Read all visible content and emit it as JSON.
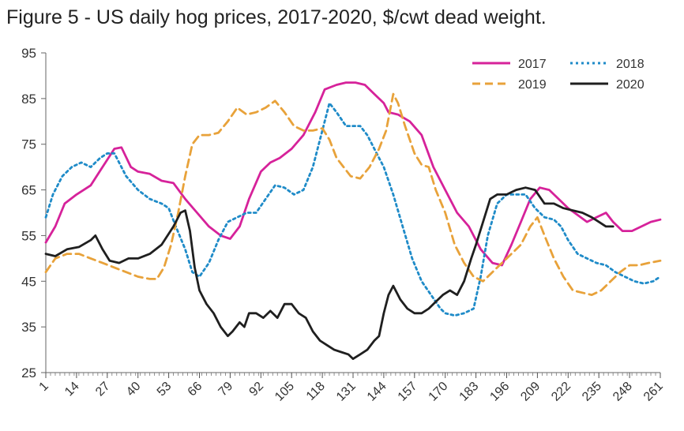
{
  "chart_data": {
    "type": "line",
    "title": "Figure 5 - US daily hog prices, 2017-2020, $/cwt dead weight.",
    "xlabel": "",
    "ylabel": "",
    "xlim": [
      1,
      261
    ],
    "ylim": [
      25,
      95
    ],
    "y_ticks": [
      25,
      35,
      45,
      55,
      65,
      75,
      85,
      95
    ],
    "x_ticks": [
      1,
      14,
      27,
      40,
      53,
      66,
      79,
      92,
      105,
      118,
      131,
      144,
      157,
      170,
      183,
      196,
      209,
      222,
      235,
      248,
      261
    ],
    "grid": false,
    "legend_position": "top-right",
    "series": [
      {
        "name": "2017",
        "color": "#d6229a",
        "style": "solid",
        "points": [
          [
            1,
            53.5
          ],
          [
            5,
            57
          ],
          [
            9,
            62
          ],
          [
            14,
            64
          ],
          [
            20,
            66
          ],
          [
            25,
            70
          ],
          [
            30,
            74
          ],
          [
            33,
            74.3
          ],
          [
            37,
            70
          ],
          [
            40,
            69
          ],
          [
            45,
            68.5
          ],
          [
            50,
            67
          ],
          [
            55,
            66.5
          ],
          [
            60,
            63
          ],
          [
            65,
            60
          ],
          [
            70,
            57
          ],
          [
            75,
            55
          ],
          [
            79,
            54.3
          ],
          [
            83,
            57
          ],
          [
            87,
            63
          ],
          [
            92,
            69
          ],
          [
            96,
            71
          ],
          [
            100,
            72
          ],
          [
            105,
            74
          ],
          [
            110,
            77
          ],
          [
            115,
            82
          ],
          [
            119,
            87
          ],
          [
            124,
            88
          ],
          [
            128,
            88.5
          ],
          [
            132,
            88.5
          ],
          [
            136,
            88
          ],
          [
            140,
            86
          ],
          [
            144,
            84
          ],
          [
            146,
            82
          ],
          [
            150,
            81.5
          ],
          [
            155,
            80
          ],
          [
            160,
            77
          ],
          [
            165,
            70
          ],
          [
            170,
            65
          ],
          [
            175,
            60
          ],
          [
            180,
            57
          ],
          [
            185,
            52
          ],
          [
            190,
            49
          ],
          [
            194,
            48.5
          ],
          [
            198,
            53
          ],
          [
            202,
            58
          ],
          [
            206,
            63
          ],
          [
            210,
            65.5
          ],
          [
            214,
            65
          ],
          [
            218,
            63
          ],
          [
            222,
            61
          ],
          [
            226,
            59.5
          ],
          [
            230,
            58
          ],
          [
            234,
            59
          ],
          [
            238,
            60
          ],
          [
            241,
            58
          ],
          [
            245,
            56
          ],
          [
            249,
            56
          ],
          [
            253,
            57
          ],
          [
            257,
            58
          ],
          [
            261,
            58.5
          ]
        ]
      },
      {
        "name": "2018",
        "color": "#1f8bc8",
        "style": "dotted",
        "points": [
          [
            1,
            59
          ],
          [
            4,
            64
          ],
          [
            8,
            68
          ],
          [
            12,
            70
          ],
          [
            16,
            71
          ],
          [
            20,
            70
          ],
          [
            24,
            72
          ],
          [
            27,
            73
          ],
          [
            30,
            73
          ],
          [
            35,
            68
          ],
          [
            40,
            65
          ],
          [
            45,
            63
          ],
          [
            50,
            62
          ],
          [
            53,
            61
          ],
          [
            56,
            57
          ],
          [
            60,
            52
          ],
          [
            63,
            47
          ],
          [
            66,
            46
          ],
          [
            70,
            49
          ],
          [
            74,
            54
          ],
          [
            78,
            58
          ],
          [
            82,
            59
          ],
          [
            86,
            60
          ],
          [
            90,
            60
          ],
          [
            94,
            63
          ],
          [
            98,
            66
          ],
          [
            102,
            65.5
          ],
          [
            106,
            64
          ],
          [
            110,
            65
          ],
          [
            114,
            70
          ],
          [
            118,
            78
          ],
          [
            121,
            84
          ],
          [
            124,
            82
          ],
          [
            128,
            79
          ],
          [
            131,
            79
          ],
          [
            134,
            79
          ],
          [
            137,
            77
          ],
          [
            140,
            74
          ],
          [
            144,
            70
          ],
          [
            148,
            64
          ],
          [
            152,
            57
          ],
          [
            156,
            50
          ],
          [
            160,
            45
          ],
          [
            164,
            42
          ],
          [
            168,
            39
          ],
          [
            170,
            38
          ],
          [
            174,
            37.5
          ],
          [
            178,
            38
          ],
          [
            182,
            39
          ],
          [
            185,
            46
          ],
          [
            188,
            55
          ],
          [
            192,
            62
          ],
          [
            196,
            64
          ],
          [
            200,
            64
          ],
          [
            204,
            64
          ],
          [
            208,
            61
          ],
          [
            212,
            59
          ],
          [
            216,
            58.5
          ],
          [
            219,
            57
          ],
          [
            222,
            54
          ],
          [
            226,
            51
          ],
          [
            230,
            50
          ],
          [
            234,
            49
          ],
          [
            238,
            48.5
          ],
          [
            242,
            47
          ],
          [
            246,
            46
          ],
          [
            250,
            45
          ],
          [
            254,
            44.5
          ],
          [
            258,
            45
          ],
          [
            261,
            46
          ]
        ]
      },
      {
        "name": "2019",
        "color": "#e8a23a",
        "style": "dashed",
        "points": [
          [
            1,
            47
          ],
          [
            5,
            50
          ],
          [
            10,
            51
          ],
          [
            15,
            51
          ],
          [
            20,
            50
          ],
          [
            25,
            49
          ],
          [
            30,
            48
          ],
          [
            35,
            47
          ],
          [
            40,
            46
          ],
          [
            45,
            45.5
          ],
          [
            48,
            45.5
          ],
          [
            51,
            48
          ],
          [
            54,
            53
          ],
          [
            57,
            60
          ],
          [
            60,
            68
          ],
          [
            63,
            75
          ],
          [
            66,
            77
          ],
          [
            70,
            77
          ],
          [
            74,
            77.5
          ],
          [
            78,
            80
          ],
          [
            82,
            83
          ],
          [
            86,
            81.5
          ],
          [
            90,
            82
          ],
          [
            94,
            83
          ],
          [
            98,
            84.5
          ],
          [
            102,
            82
          ],
          [
            106,
            79
          ],
          [
            110,
            78
          ],
          [
            114,
            78
          ],
          [
            118,
            78.5
          ],
          [
            121,
            76
          ],
          [
            124,
            72
          ],
          [
            127,
            70
          ],
          [
            130,
            68
          ],
          [
            134,
            67.5
          ],
          [
            138,
            70
          ],
          [
            142,
            74
          ],
          [
            145,
            78
          ],
          [
            148,
            86
          ],
          [
            150,
            84
          ],
          [
            153,
            79
          ],
          [
            157,
            73
          ],
          [
            160,
            70.5
          ],
          [
            163,
            70
          ],
          [
            166,
            65
          ],
          [
            170,
            60
          ],
          [
            174,
            53
          ],
          [
            178,
            49
          ],
          [
            182,
            46
          ],
          [
            186,
            45
          ],
          [
            190,
            47
          ],
          [
            194,
            49
          ],
          [
            198,
            51
          ],
          [
            202,
            53
          ],
          [
            206,
            57
          ],
          [
            209,
            59
          ],
          [
            212,
            55
          ],
          [
            216,
            50
          ],
          [
            220,
            46
          ],
          [
            224,
            43
          ],
          [
            228,
            42.5
          ],
          [
            232,
            42
          ],
          [
            236,
            43
          ],
          [
            240,
            45
          ],
          [
            244,
            47
          ],
          [
            248,
            48.5
          ],
          [
            252,
            48.5
          ],
          [
            256,
            49
          ],
          [
            261,
            49.5
          ]
        ]
      },
      {
        "name": "2020",
        "color": "#1f1f1f",
        "style": "solid",
        "points": [
          [
            1,
            51
          ],
          [
            5,
            50.5
          ],
          [
            10,
            52
          ],
          [
            15,
            52.5
          ],
          [
            20,
            54
          ],
          [
            22,
            55
          ],
          [
            25,
            52
          ],
          [
            28,
            49.5
          ],
          [
            32,
            49
          ],
          [
            36,
            50
          ],
          [
            40,
            50
          ],
          [
            45,
            51
          ],
          [
            50,
            53
          ],
          [
            55,
            57
          ],
          [
            58,
            60
          ],
          [
            60,
            60.5
          ],
          [
            62,
            56
          ],
          [
            64,
            48
          ],
          [
            66,
            43
          ],
          [
            69,
            40
          ],
          [
            72,
            38
          ],
          [
            75,
            35
          ],
          [
            78,
            33
          ],
          [
            80,
            34
          ],
          [
            83,
            36
          ],
          [
            85,
            35
          ],
          [
            87,
            38
          ],
          [
            90,
            38
          ],
          [
            93,
            37
          ],
          [
            96,
            38.5
          ],
          [
            99,
            37
          ],
          [
            102,
            40
          ],
          [
            105,
            40
          ],
          [
            108,
            38
          ],
          [
            111,
            37
          ],
          [
            114,
            34
          ],
          [
            117,
            32
          ],
          [
            120,
            31
          ],
          [
            123,
            30
          ],
          [
            126,
            29.5
          ],
          [
            129,
            29
          ],
          [
            131,
            28
          ],
          [
            134,
            29
          ],
          [
            137,
            30
          ],
          [
            140,
            32
          ],
          [
            142,
            33
          ],
          [
            144,
            38
          ],
          [
            146,
            42
          ],
          [
            148,
            44
          ],
          [
            151,
            41
          ],
          [
            154,
            39
          ],
          [
            157,
            38
          ],
          [
            160,
            38
          ],
          [
            163,
            39
          ],
          [
            166,
            40.5
          ],
          [
            169,
            42
          ],
          [
            172,
            43
          ],
          [
            175,
            42
          ],
          [
            178,
            45
          ],
          [
            181,
            50
          ],
          [
            183,
            53
          ],
          [
            186,
            58
          ],
          [
            189,
            63
          ],
          [
            192,
            64
          ],
          [
            196,
            64
          ],
          [
            200,
            65
          ],
          [
            204,
            65.5
          ],
          [
            208,
            65
          ],
          [
            212,
            62
          ],
          [
            216,
            62
          ],
          [
            220,
            61
          ],
          [
            224,
            60.5
          ],
          [
            228,
            60
          ],
          [
            232,
            59
          ],
          [
            235,
            58
          ],
          [
            238,
            57
          ],
          [
            241,
            57
          ]
        ]
      }
    ]
  }
}
